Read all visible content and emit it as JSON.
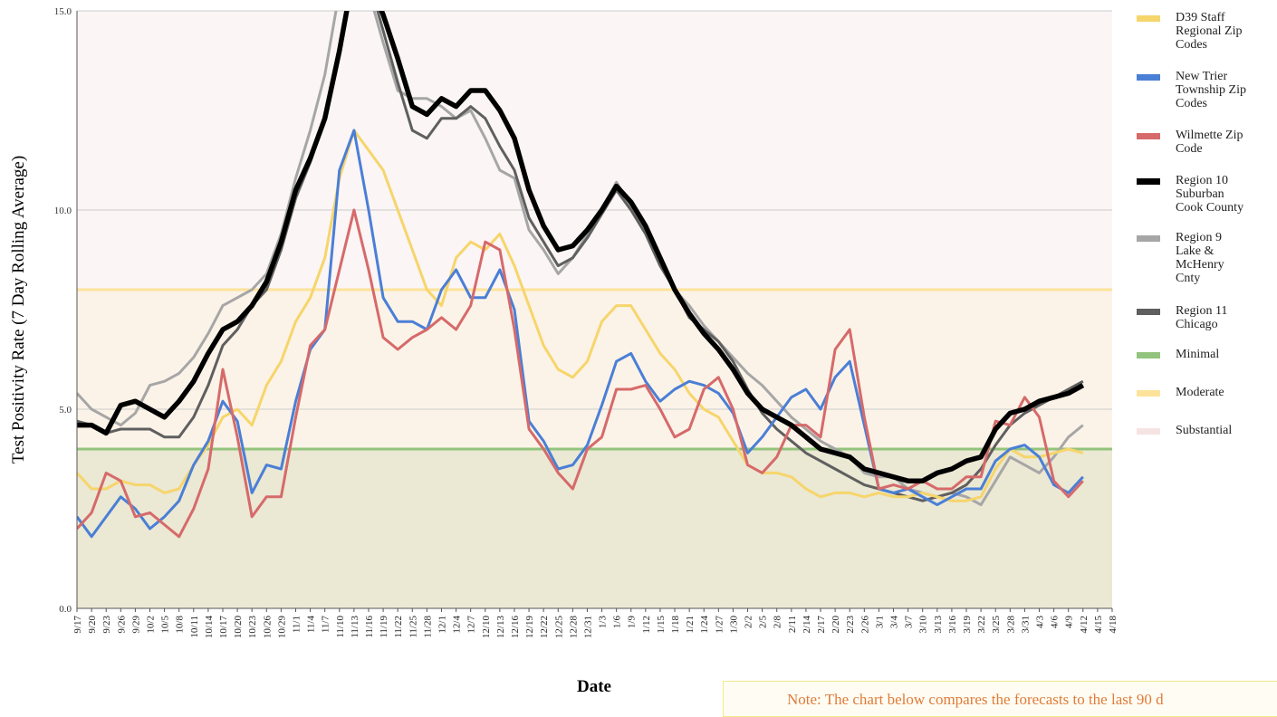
{
  "chart_data": {
    "type": "line",
    "y_label": "Test Positivity Rate (7 Day Rolling Average)",
    "x_label": "Date",
    "note": "Note: The chart below compares the forecasts to the last 90 d",
    "ylim": [
      0,
      15
    ],
    "yticks": [
      {
        "value": 0,
        "label": "0.0"
      },
      {
        "value": 5,
        "label": "5.0"
      },
      {
        "value": 10,
        "label": "10.0"
      },
      {
        "value": 15,
        "label": "15.0"
      }
    ],
    "categories": [
      "9/17",
      "9/20",
      "9/23",
      "9/26",
      "9/29",
      "10/2",
      "10/5",
      "10/8",
      "10/11",
      "10/14",
      "10/17",
      "10/20",
      "10/23",
      "10/26",
      "10/29",
      "11/1",
      "11/4",
      "11/7",
      "11/10",
      "11/13",
      "11/16",
      "11/19",
      "11/22",
      "11/25",
      "11/28",
      "12/1",
      "12/4",
      "12/7",
      "12/10",
      "12/13",
      "12/16",
      "12/19",
      "12/22",
      "12/25",
      "12/28",
      "12/31",
      "1/3",
      "1/6",
      "1/9",
      "1/12",
      "1/15",
      "1/18",
      "1/21",
      "1/24",
      "1/27",
      "1/30",
      "2/2",
      "2/5",
      "2/8",
      "2/11",
      "2/14",
      "2/17",
      "2/20",
      "2/23",
      "2/26",
      "3/1",
      "3/4",
      "3/7",
      "3/10",
      "3/13",
      "3/16",
      "3/19",
      "3/22",
      "3/25",
      "3/28",
      "3/31",
      "4/3",
      "4/6",
      "4/9",
      "4/12",
      "4/15",
      "4/18"
    ],
    "series": [
      {
        "name": "D39 Staff Regional Zip Codes",
        "color": "#f6d56b",
        "values": [
          3.4,
          3.0,
          3.0,
          3.2,
          3.1,
          3.1,
          2.9,
          3.0,
          3.6,
          4.1,
          4.8,
          5.0,
          4.6,
          5.6,
          6.2,
          7.2,
          7.8,
          8.8,
          10.8,
          12.0,
          11.5,
          11.0,
          10.0,
          9.0,
          8.0,
          7.6,
          8.8,
          9.2,
          9.0,
          9.4,
          8.6,
          7.6,
          6.6,
          6.0,
          5.8,
          6.2,
          7.2,
          7.6,
          7.6,
          7.0,
          6.4,
          6.0,
          5.4,
          5.0,
          4.8,
          4.2,
          3.6,
          3.4,
          3.4,
          3.3,
          3.0,
          2.8,
          2.9,
          2.9,
          2.8,
          2.9,
          2.8,
          2.8,
          2.9,
          2.8,
          2.7,
          2.7,
          2.8,
          3.5,
          4.0,
          3.8,
          3.8,
          3.9,
          4.0,
          3.9,
          null,
          null
        ]
      },
      {
        "name": "New Trier Township Zip Codes",
        "color": "#4a7fd6",
        "values": [
          2.3,
          1.8,
          2.3,
          2.8,
          2.5,
          2.0,
          2.3,
          2.7,
          3.6,
          4.2,
          5.2,
          4.7,
          2.9,
          3.6,
          3.5,
          5.2,
          6.5,
          7.0,
          11.0,
          12.0,
          10.0,
          7.8,
          7.2,
          7.2,
          7.0,
          8.0,
          8.5,
          7.8,
          7.8,
          8.5,
          7.5,
          4.7,
          4.2,
          3.5,
          3.6,
          4.1,
          5.1,
          6.2,
          6.4,
          5.7,
          5.2,
          5.5,
          5.7,
          5.6,
          5.4,
          4.9,
          3.9,
          4.3,
          4.8,
          5.3,
          5.5,
          5.0,
          5.8,
          6.2,
          4.6,
          3.0,
          2.9,
          3.0,
          2.8,
          2.6,
          2.8,
          3.0,
          3.0,
          3.7,
          4.0,
          4.1,
          3.8,
          3.1,
          2.9,
          3.3,
          null,
          null
        ]
      },
      {
        "name": "Wilmette Zip Code",
        "color": "#d66a6a",
        "values": [
          2.0,
          2.4,
          3.4,
          3.2,
          2.3,
          2.4,
          2.1,
          1.8,
          2.5,
          3.5,
          6.0,
          4.3,
          2.3,
          2.8,
          2.8,
          4.8,
          6.6,
          7.0,
          8.5,
          10.0,
          8.5,
          6.8,
          6.5,
          6.8,
          7.0,
          7.3,
          7.0,
          7.6,
          9.2,
          9.0,
          7.0,
          4.5,
          4.0,
          3.4,
          3.0,
          4.0,
          4.3,
          5.5,
          5.5,
          5.6,
          5.0,
          4.3,
          4.5,
          5.5,
          5.8,
          5.0,
          3.6,
          3.4,
          3.8,
          4.6,
          4.6,
          4.3,
          6.5,
          7.0,
          4.8,
          3.0,
          3.1,
          3.0,
          3.2,
          3.0,
          3.0,
          3.3,
          3.3,
          4.7,
          4.6,
          5.3,
          4.8,
          3.2,
          2.8,
          3.2,
          null,
          null
        ]
      },
      {
        "name": "Region 10 Suburban Cook County",
        "color": "#000000",
        "values": [
          4.6,
          4.6,
          4.4,
          5.1,
          5.2,
          5.0,
          4.8,
          5.2,
          5.7,
          6.4,
          7.0,
          7.2,
          7.6,
          8.2,
          9.2,
          10.5,
          11.3,
          12.3,
          14.0,
          16.0,
          15.8,
          14.9,
          13.8,
          12.6,
          12.4,
          12.8,
          12.6,
          13.0,
          13.0,
          12.5,
          11.8,
          10.5,
          9.6,
          9.0,
          9.1,
          9.5,
          10.0,
          10.6,
          10.2,
          9.6,
          8.8,
          8.0,
          7.4,
          6.9,
          6.5,
          6.0,
          5.4,
          5.0,
          4.8,
          4.6,
          4.3,
          4.0,
          3.9,
          3.8,
          3.5,
          3.4,
          3.3,
          3.2,
          3.2,
          3.4,
          3.5,
          3.7,
          3.8,
          4.5,
          4.9,
          5.0,
          5.2,
          5.3,
          5.4,
          5.6,
          null,
          null
        ]
      },
      {
        "name": "Region 9 Lake & McHenry Cnty",
        "color": "#a6a6a6",
        "values": [
          5.4,
          5.0,
          4.8,
          4.6,
          4.9,
          5.6,
          5.7,
          5.9,
          6.3,
          6.9,
          7.6,
          7.8,
          8.0,
          8.4,
          9.4,
          10.8,
          12.0,
          13.4,
          15.5,
          16.0,
          15.5,
          14.2,
          13.0,
          12.8,
          12.8,
          12.6,
          12.3,
          12.5,
          11.8,
          11.0,
          10.8,
          9.5,
          9.0,
          8.4,
          8.8,
          9.4,
          10.0,
          10.7,
          10.1,
          9.5,
          8.6,
          8.0,
          7.6,
          7.1,
          6.7,
          6.3,
          5.9,
          5.6,
          5.2,
          4.8,
          4.5,
          4.2,
          4.0,
          3.8,
          3.4,
          3.3,
          3.3,
          3.0,
          2.9,
          2.8,
          2.9,
          2.8,
          2.6,
          3.2,
          3.8,
          3.6,
          3.4,
          3.8,
          4.3,
          4.6,
          null,
          null
        ]
      },
      {
        "name": "Region 11 Chicago",
        "color": "#5f5f5f",
        "values": [
          4.7,
          4.6,
          4.4,
          4.5,
          4.5,
          4.5,
          4.3,
          4.3,
          4.8,
          5.6,
          6.6,
          7.0,
          7.6,
          8.0,
          9.0,
          10.3,
          11.2,
          12.3,
          14.0,
          16.0,
          15.8,
          14.5,
          13.2,
          12.0,
          11.8,
          12.3,
          12.3,
          12.6,
          12.3,
          11.6,
          11.0,
          9.8,
          9.2,
          8.6,
          8.8,
          9.3,
          9.9,
          10.5,
          10.0,
          9.4,
          8.6,
          8.0,
          7.3,
          7.0,
          6.7,
          6.2,
          5.5,
          4.9,
          4.5,
          4.2,
          3.9,
          3.7,
          3.5,
          3.3,
          3.1,
          3.0,
          2.9,
          2.8,
          2.7,
          2.8,
          2.9,
          3.1,
          3.5,
          4.1,
          4.6,
          4.9,
          5.1,
          5.3,
          5.5,
          5.7,
          null,
          null
        ]
      }
    ],
    "bands": [
      {
        "name": "Minimal",
        "color": "#93c47d",
        "fill": "#ebe8d4",
        "range": [
          0,
          4
        ]
      },
      {
        "name": "Moderate",
        "color": "#fde39a",
        "fill": "#fcf3e8",
        "range": [
          4,
          8
        ]
      },
      {
        "name": "Substantial",
        "color": "#f6e3e3",
        "fill": "#fbf5f5",
        "range": [
          8,
          15
        ]
      }
    ]
  }
}
